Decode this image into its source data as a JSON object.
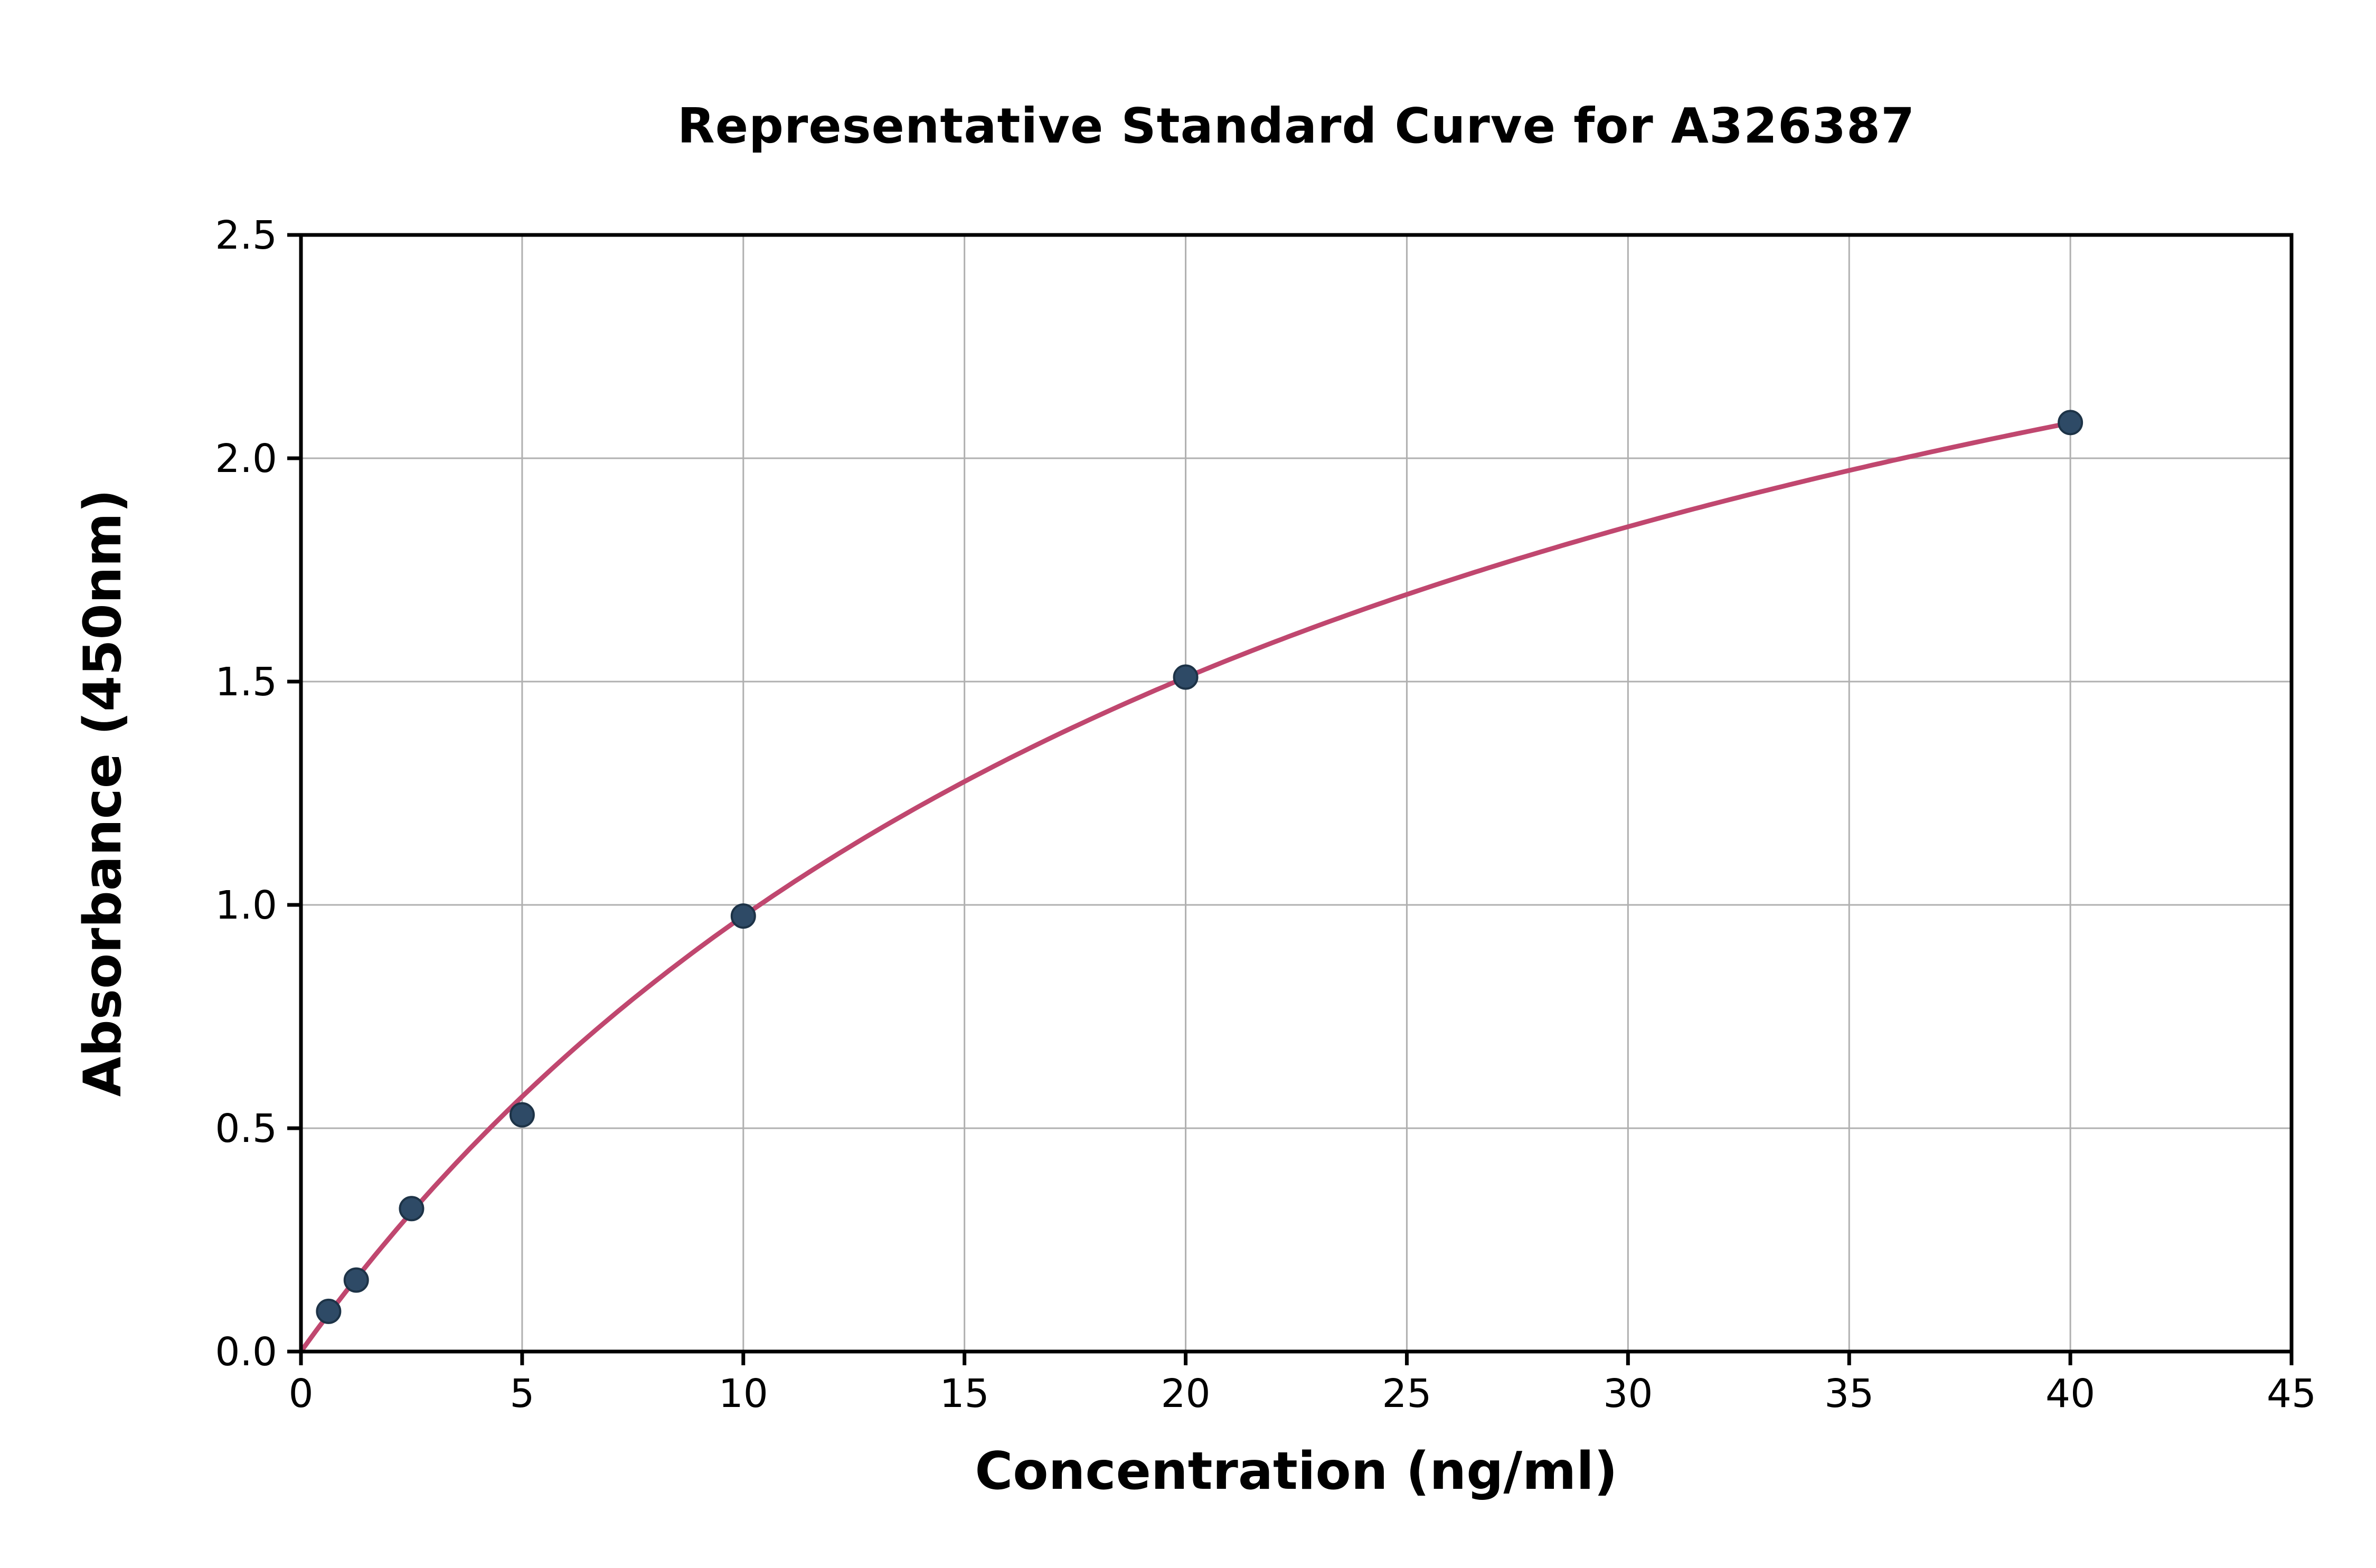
{
  "chart_data": {
    "type": "scatter",
    "title": "Representative Standard Curve for A326387",
    "xlabel": "Concentration (ng/ml)",
    "ylabel": "Absorbance (450nm)",
    "xlim": [
      0,
      45
    ],
    "ylim": [
      0,
      2.5
    ],
    "x_ticks": [
      0,
      5,
      10,
      15,
      20,
      25,
      30,
      35,
      40,
      45
    ],
    "y_ticks": [
      0.0,
      0.5,
      1.0,
      1.5,
      2.0,
      2.5
    ],
    "x_tick_decimals": 0,
    "y_tick_decimals": 1,
    "grid": true,
    "legend_position": "none",
    "points": {
      "x": [
        0.625,
        1.25,
        2.5,
        5,
        10,
        20,
        40
      ],
      "y": [
        0.09,
        0.16,
        0.32,
        0.53,
        0.975,
        1.51,
        2.08
      ]
    },
    "fit_curve": {
      "model": "y = a*x / (b + x)",
      "a": 3.34,
      "b": 24.26,
      "x_start": 0,
      "x_end": 40
    },
    "colors": {
      "curve": "#c0476f",
      "marker_fill": "#2e4a66",
      "marker_edge": "#1d3347",
      "grid": "#b0b0b0",
      "spine": "#000000",
      "background": "#ffffff"
    }
  }
}
